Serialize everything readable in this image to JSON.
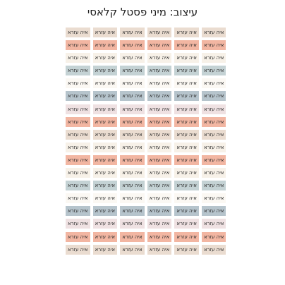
{
  "title": "עיצוב: מיני פסטל קלאסי",
  "sticker_text": "איה עזרא",
  "colors": {
    "beige": "#eadcd0",
    "salmon": "#f2b6a2",
    "cream": "#f7f1e8",
    "blue": "#c4d2d4",
    "slate": "#b6c4cc",
    "pink": "#efe1e2",
    "white": "#fbf8f3"
  },
  "rows": [
    [
      "beige",
      "beige",
      "beige",
      "beige",
      "beige",
      "beige"
    ],
    [
      "salmon",
      "salmon",
      "salmon",
      "salmon",
      "salmon",
      "salmon"
    ],
    [
      "cream",
      "cream",
      "cream",
      "cream",
      "cream",
      "cream"
    ],
    [
      "blue",
      "blue",
      "blue",
      "blue",
      "blue",
      "blue"
    ],
    [
      "white",
      "white",
      "white",
      "white",
      "white",
      "white"
    ],
    [
      "slate",
      "slate",
      "slate",
      "slate",
      "slate",
      "slate"
    ],
    [
      "pink",
      "pink",
      "pink",
      "pink",
      "pink",
      "pink"
    ],
    [
      "salmon",
      "salmon",
      "salmon",
      "salmon",
      "salmon",
      "salmon"
    ],
    [
      "beige",
      "beige",
      "beige",
      "beige",
      "beige",
      "beige"
    ],
    [
      "cream",
      "cream",
      "cream",
      "cream",
      "cream",
      "cream"
    ],
    [
      "salmon",
      "salmon",
      "salmon",
      "salmon",
      "salmon",
      "salmon"
    ],
    [
      "cream",
      "cream",
      "cream",
      "cream",
      "cream",
      "cream"
    ],
    [
      "blue",
      "blue",
      "blue",
      "blue",
      "blue",
      "blue"
    ],
    [
      "white",
      "white",
      "white",
      "white",
      "white",
      "white"
    ],
    [
      "slate",
      "slate",
      "slate",
      "slate",
      "slate",
      "slate"
    ],
    [
      "pink",
      "pink",
      "pink",
      "pink",
      "pink",
      "pink"
    ],
    [
      "salmon",
      "salmon",
      "salmon",
      "salmon",
      "salmon",
      "salmon"
    ],
    [
      "beige",
      "beige",
      "beige",
      "beige",
      "beige",
      "beige"
    ]
  ]
}
